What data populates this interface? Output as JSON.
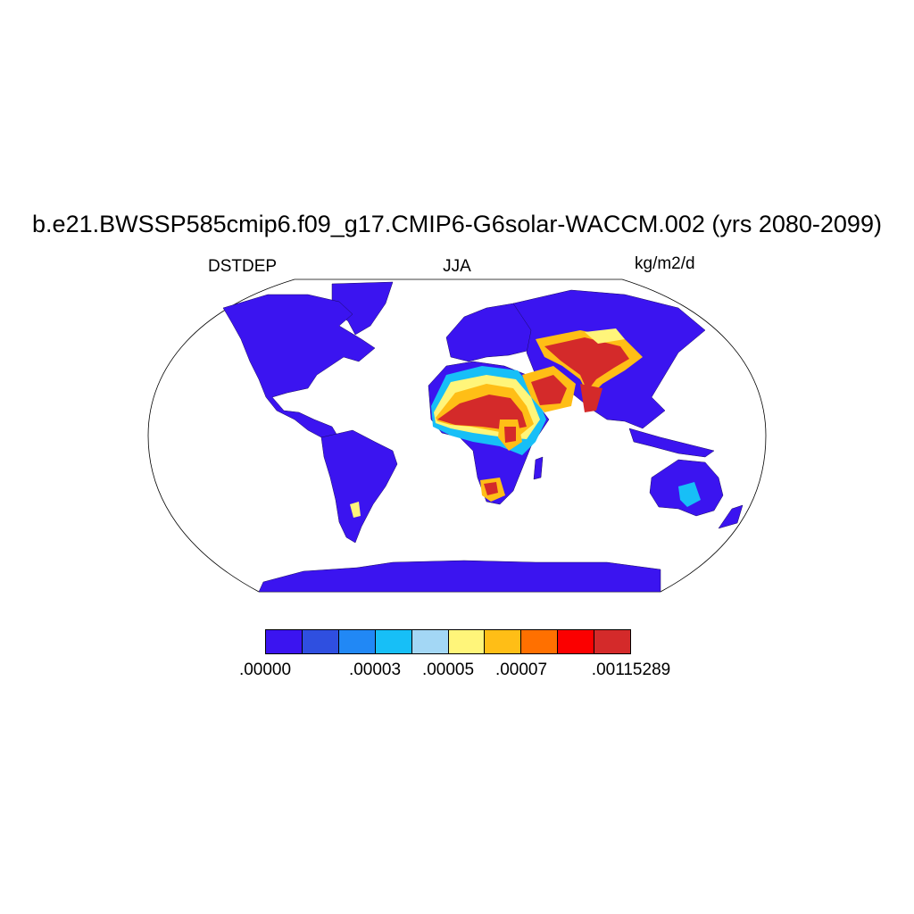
{
  "title": "b.e21.BWSSP585cmip6.f09_g17.CMIP6-G6solar-WACCM.002 (yrs 2080-2099)",
  "left_string": "DSTDEP",
  "center_string": "JJA",
  "right_string": "kg/m2/d",
  "colorbar": {
    "colors": [
      "#3b14f0",
      "#2f4fe0",
      "#2188f5",
      "#17bff7",
      "#a3d7f5",
      "#fff57a",
      "#ffbe16",
      "#ff7000",
      "#fb0000",
      "#d42a2a"
    ],
    "labels": [
      ".00000",
      ".00003",
      ".00005",
      ".00007",
      ".00115289"
    ]
  },
  "map": {
    "projection": "Robinson",
    "land_base_color": "#3b14f0",
    "ocean_color": "#ffffff"
  }
}
